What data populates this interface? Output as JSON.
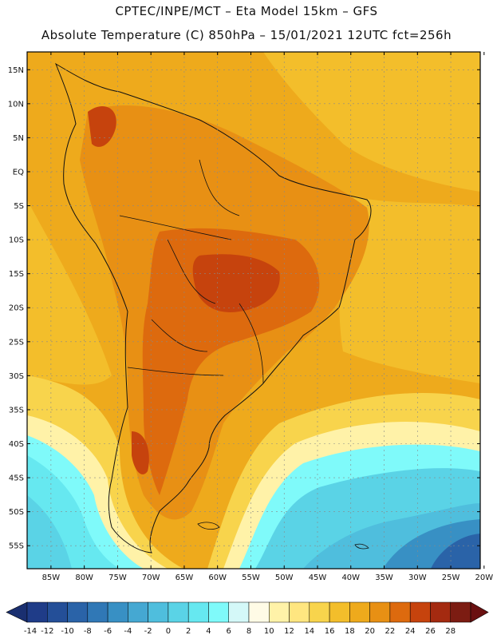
{
  "header": {
    "line1": "CPTEC/INPE/MCT –  Eta Model 15km – GFS",
    "line2": "Absolute Temperature (C) 850hPa – 15/01/2021 12UTC fct=256h"
  },
  "axes": {
    "lat_labels": [
      "15N",
      "10N",
      "5N",
      "EQ",
      "5S",
      "10S",
      "15S",
      "20S",
      "25S",
      "30S",
      "35S",
      "40S",
      "45S",
      "50S",
      "55S"
    ],
    "lon_labels": [
      "85W",
      "80W",
      "75W",
      "70W",
      "65W",
      "60W",
      "55W",
      "50W",
      "45W",
      "40W",
      "35W",
      "30W",
      "25W",
      "20W"
    ],
    "lat_values": [
      15,
      10,
      5,
      0,
      -5,
      -10,
      -15,
      -20,
      -25,
      -30,
      -35,
      -40,
      -45,
      -50,
      -55
    ],
    "lon_values": [
      -85,
      -80,
      -75,
      -70,
      -65,
      -60,
      -55,
      -50,
      -45,
      -40,
      -35,
      -30,
      -25,
      -20
    ]
  },
  "colorbar": {
    "ticks": [
      "-14",
      "-12",
      "-10",
      "-8",
      "-6",
      "-4",
      "-2",
      "0",
      "2",
      "4",
      "6",
      "8",
      "10",
      "12",
      "14",
      "16",
      "18",
      "20",
      "22",
      "24",
      "26",
      "28"
    ],
    "colors": [
      "#1f3c88",
      "#244f98",
      "#2a63a8",
      "#3078b6",
      "#3890c4",
      "#45a8d2",
      "#4fbedd",
      "#5ad3e6",
      "#66e8f0",
      "#7ffafa",
      "#d4f8f8",
      "#fffbe6",
      "#fff2a8",
      "#ffe680",
      "#f8d44c",
      "#f3be2b",
      "#eeaa1c",
      "#e89014",
      "#dd6a0e",
      "#c6430d",
      "#a42a10",
      "#7c1c12"
    ],
    "under_color": "#1a2f70",
    "over_color": "#6a1010"
  }
}
